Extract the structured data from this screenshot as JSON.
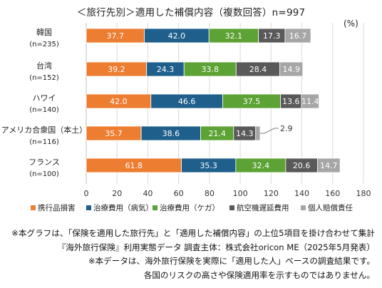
{
  "title": "＜旅行先別＞適用した補償内容（複数回答）n=997",
  "unit_label": "(%)",
  "colors": {
    "携行品損害": "#ED7D31",
    "治療費用（病気）": "#1F5F8B",
    "治療費用（ケガ）": "#5DA234",
    "航空機遅延費用": "#595959",
    "個人賠償責任": "#A6A6A6"
  },
  "chart_data": {
    "type": "bar",
    "orientation": "horizontal",
    "stacked": true,
    "categories": [
      {
        "name": "韓国",
        "n": "(n=235)"
      },
      {
        "name": "台湾",
        "n": "(n=152)"
      },
      {
        "name": "ハワイ",
        "n": "(n=140)"
      },
      {
        "name": "アメリカ合衆国（本土）",
        "n": "(n=116)"
      },
      {
        "name": "フランス",
        "n": "(n=100)"
      }
    ],
    "series": [
      {
        "name": "携行品損害",
        "values": [
          37.7,
          39.2,
          42.0,
          35.7,
          61.8
        ]
      },
      {
        "name": "治療費用（病気）",
        "values": [
          42.0,
          24.3,
          46.6,
          38.6,
          35.3
        ]
      },
      {
        "name": "治療費用（ケガ）",
        "values": [
          32.1,
          33.8,
          37.5,
          21.4,
          32.4
        ]
      },
      {
        "name": "航空機遅延費用",
        "values": [
          17.3,
          28.4,
          13.6,
          14.3,
          20.6
        ]
      },
      {
        "name": "個人賠償責任",
        "values": [
          16.7,
          14.9,
          11.4,
          2.9,
          14.7
        ]
      }
    ],
    "xlim": [
      0,
      180
    ],
    "xticks": [
      0,
      20,
      40,
      60,
      80,
      100,
      120,
      140,
      160,
      180
    ],
    "grid": true,
    "legend": "bottom",
    "callouts": [
      {
        "category_index": 3,
        "series_index": 4,
        "text": "2.9"
      }
    ]
  },
  "notes": [
    "※本グラフは、「保険を適用した旅行先」と「適用した補償内容」の上位5項目を掛け合わせて集計",
    "『海外旅行保険』利用実態データ 調査主体：株式会社oricon ME（2025年5月発表）",
    "※本データは、海外旅行保険を実際に「適用した人」ベースの調査結果です。",
    "各国のリスクの高さや保険適用率を示すものではありません。"
  ]
}
